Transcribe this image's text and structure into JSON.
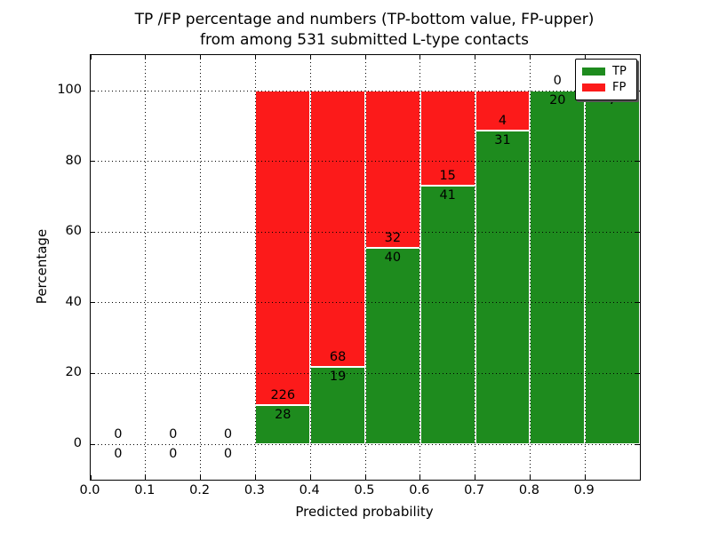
{
  "title": {
    "line1": "TP /FP percentage and numbers (TP-bottom value, FP-upper)",
    "line2": "from among 531 submitted L-type contacts"
  },
  "axes": {
    "xlabel": "Predicted probability",
    "ylabel": "Percentage",
    "x_ticks": [
      0.0,
      0.1,
      0.2,
      0.3,
      0.4,
      0.5,
      0.6,
      0.7,
      0.8,
      0.9
    ],
    "x_tick_labels": [
      "0.0",
      "0.1",
      "0.2",
      "0.3",
      "0.4",
      "0.5",
      "0.6",
      "0.7",
      "0.8",
      "0.9"
    ],
    "y_ticks": [
      0,
      20,
      40,
      60,
      80,
      100
    ],
    "y_tick_labels": [
      "0",
      "20",
      "40",
      "60",
      "80",
      "100"
    ],
    "xlim": [
      0.0,
      1.0
    ],
    "ylim": [
      -10,
      110
    ],
    "grid": "dotted, both axes, drawn over bars"
  },
  "legend": {
    "position": "upper right",
    "items": [
      {
        "label": "TP",
        "color": "#1e8b1e"
      },
      {
        "label": "FP",
        "color": "#fc1a1a"
      }
    ]
  },
  "chart_data": {
    "type": "bar",
    "stacked": true,
    "normalized": "each bin scaled to 100%, labels show raw counts (TP below boundary, FP above)",
    "total_contacts": 531,
    "bin_width": 0.1,
    "bin_starts": [
      0.0,
      0.1,
      0.2,
      0.3,
      0.4,
      0.5,
      0.6,
      0.7,
      0.8,
      0.9
    ],
    "series": [
      {
        "name": "TP",
        "color": "#1e8b1e",
        "counts": [
          0,
          0,
          0,
          28,
          19,
          40,
          41,
          31,
          20,
          7
        ]
      },
      {
        "name": "FP",
        "color": "#fc1a1a",
        "counts": [
          0,
          0,
          0,
          226,
          68,
          32,
          15,
          4,
          0,
          0
        ]
      }
    ],
    "tp_percent_of_bin": [
      0,
      0,
      0,
      11.02,
      21.84,
      55.56,
      73.21,
      88.57,
      100,
      100
    ]
  },
  "colors": {
    "tp": "#1e8b1e",
    "fp": "#fc1a1a",
    "grid": "#000000",
    "frame": "#000000",
    "background": "#ffffff",
    "text": "#000000"
  }
}
